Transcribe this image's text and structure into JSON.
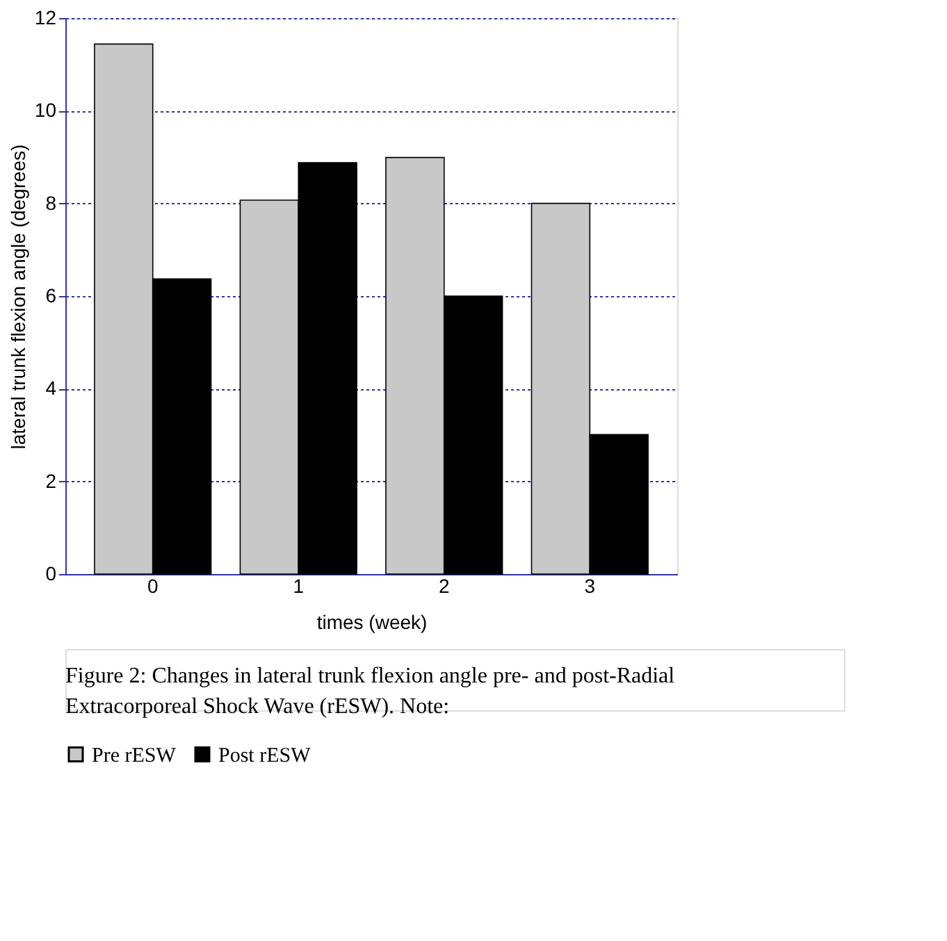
{
  "chart_data": {
    "type": "bar",
    "categories": [
      "0",
      "1",
      "2",
      "3"
    ],
    "series": [
      {
        "name": "Pre rESW",
        "color": "#c8c8c8",
        "values": [
          11.44,
          8.07,
          8.99,
          8.0
        ]
      },
      {
        "name": "Post rESW",
        "color": "#000000",
        "values": [
          6.37,
          8.88,
          6.0,
          3.01
        ]
      }
    ],
    "xlabel": "times (week)",
    "ylabel": "lateral trunk flexion angle (degrees)",
    "ylim": [
      0,
      12
    ],
    "yticks": [
      0,
      2,
      4,
      6,
      8,
      10,
      12
    ],
    "grid": "y",
    "legend": "bottom",
    "annotations": [
      "Figure 2: Changes in lateral trunk flexion angle pre- and post-Radial Extracorporeal Shock Wave (rESW). Note:"
    ]
  }
}
